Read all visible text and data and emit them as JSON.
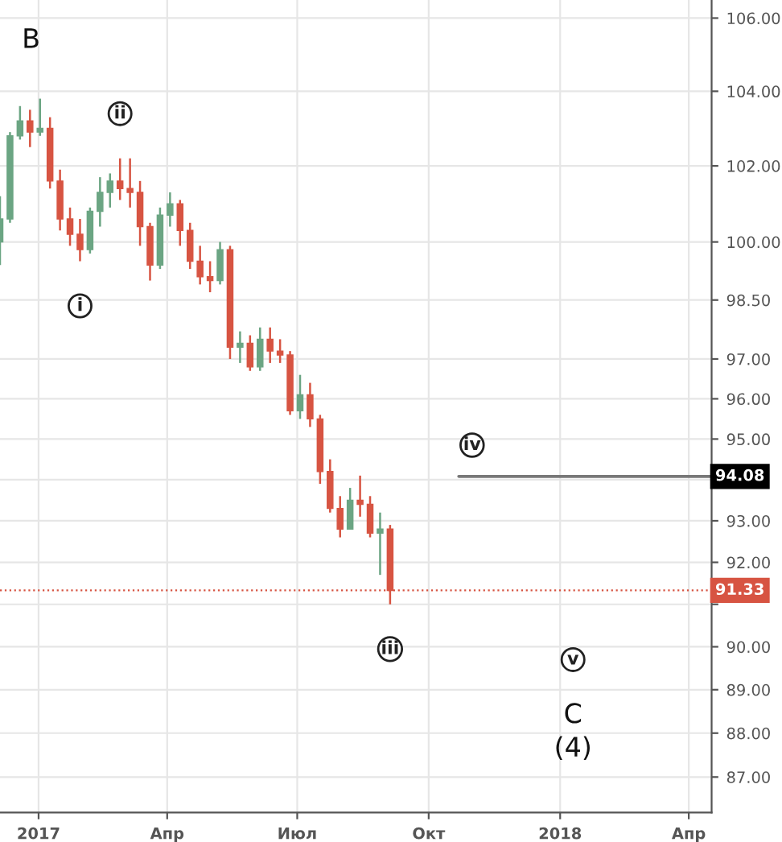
{
  "chart_data": {
    "type": "candlestick",
    "x": [
      "2016-12-05",
      "2016-12-12",
      "2016-12-19",
      "2016-12-26",
      "2017-01-02",
      "2017-01-09",
      "2017-01-16",
      "2017-01-23",
      "2017-01-30",
      "2017-02-06",
      "2017-02-13",
      "2017-02-20",
      "2017-02-27",
      "2017-03-06",
      "2017-03-13",
      "2017-03-20",
      "2017-03-27",
      "2017-04-03",
      "2017-04-10",
      "2017-04-17",
      "2017-04-24",
      "2017-05-01",
      "2017-05-08",
      "2017-05-15",
      "2017-05-22",
      "2017-05-29",
      "2017-06-05",
      "2017-06-12",
      "2017-06-19",
      "2017-06-26",
      "2017-07-03",
      "2017-07-10",
      "2017-07-17",
      "2017-07-24",
      "2017-07-31",
      "2017-08-07",
      "2017-08-14",
      "2017-08-21",
      "2017-08-28",
      "2017-09-04"
    ],
    "ohlc": [
      [
        100.0,
        101.2,
        99.4,
        100.6
      ],
      [
        100.6,
        102.9,
        100.5,
        102.8
      ],
      [
        102.8,
        103.6,
        102.7,
        103.2
      ],
      [
        103.2,
        103.5,
        102.5,
        102.9
      ],
      [
        102.9,
        103.8,
        102.8,
        103.0
      ],
      [
        103.0,
        103.3,
        101.4,
        101.6
      ],
      [
        101.6,
        101.9,
        100.3,
        100.6
      ],
      [
        100.6,
        100.9,
        99.9,
        100.2
      ],
      [
        100.2,
        100.6,
        99.5,
        99.8
      ],
      [
        99.8,
        100.9,
        99.7,
        100.8
      ],
      [
        100.8,
        101.7,
        100.4,
        101.3
      ],
      [
        101.3,
        101.8,
        100.9,
        101.6
      ],
      [
        101.6,
        102.2,
        101.1,
        101.4
      ],
      [
        101.4,
        102.2,
        100.9,
        101.3
      ],
      [
        101.3,
        101.6,
        99.9,
        100.4
      ],
      [
        100.4,
        100.5,
        99.0,
        99.4
      ],
      [
        99.4,
        100.9,
        99.3,
        100.7
      ],
      [
        100.7,
        101.3,
        100.4,
        101.0
      ],
      [
        101.0,
        101.1,
        99.9,
        100.3
      ],
      [
        100.3,
        100.5,
        99.3,
        99.5
      ],
      [
        99.5,
        99.9,
        98.9,
        99.1
      ],
      [
        99.1,
        99.5,
        98.7,
        99.0
      ],
      [
        99.0,
        100.0,
        98.9,
        99.8
      ],
      [
        99.8,
        99.9,
        97.0,
        97.3
      ],
      [
        97.3,
        97.7,
        96.9,
        97.4
      ],
      [
        97.4,
        97.6,
        96.7,
        96.8
      ],
      [
        96.8,
        97.8,
        96.7,
        97.5
      ],
      [
        97.5,
        97.8,
        96.9,
        97.2
      ],
      [
        97.2,
        97.5,
        96.9,
        97.1
      ],
      [
        97.1,
        97.2,
        95.6,
        95.7
      ],
      [
        95.7,
        96.6,
        95.5,
        96.1
      ],
      [
        96.1,
        96.4,
        95.3,
        95.5
      ],
      [
        95.5,
        95.6,
        93.9,
        94.2
      ],
      [
        94.2,
        94.5,
        93.2,
        93.3
      ],
      [
        93.3,
        93.6,
        92.6,
        92.8
      ],
      [
        92.8,
        93.8,
        92.8,
        93.5
      ],
      [
        93.5,
        94.1,
        93.1,
        93.4
      ],
      [
        93.4,
        93.6,
        92.6,
        92.7
      ],
      [
        92.7,
        93.2,
        91.7,
        92.8
      ],
      [
        92.8,
        92.9,
        91.0,
        91.33
      ]
    ],
    "colors": [
      "#6ba583",
      "#6ba583",
      "#6ba583",
      "#d75442",
      "#6ba583",
      "#d75442",
      "#d75442",
      "#d75442",
      "#d75442",
      "#6ba583",
      "#6ba583",
      "#6ba583",
      "#d75442",
      "#d75442",
      "#d75442",
      "#d75442",
      "#6ba583",
      "#6ba583",
      "#d75442",
      "#d75442",
      "#d75442",
      "#d75442",
      "#6ba583",
      "#d75442",
      "#6ba583",
      "#d75442",
      "#6ba583",
      "#d75442",
      "#d75442",
      "#d75442",
      "#6ba583",
      "#d75442",
      "#d75442",
      "#d75442",
      "#d75442",
      "#6ba583",
      "#d75442",
      "#d75442",
      "#6ba583",
      "#d75442"
    ],
    "ref_lines": [
      {
        "axis": "y",
        "value": 91.33,
        "label": "91.33",
        "color": "#d75442",
        "line_style": "dotted"
      }
    ],
    "series": [
      {
        "type": "line",
        "color": "#787878",
        "x": [
          "2017-10-22",
          "2018-04-17"
        ],
        "values": [
          94.08,
          94.08
        ]
      }
    ],
    "annotations": [
      {
        "text": "B",
        "x": "2017-01-02",
        "y": 103.8
      },
      {
        "text": "ii",
        "x": "2017-02-27",
        "y": 102.2
      },
      {
        "text": "i",
        "x": "2017-01-30",
        "y": 99.5
      },
      {
        "text": "iii",
        "x": "2017-09-04",
        "y": 91.0
      },
      {
        "text": "iv",
        "x": "2017-10-22",
        "y": 94.08
      },
      {
        "text": "v",
        "x": "2018-01-10",
        "y": 89.7
      },
      "C",
      "(4)",
      {
        "text": "94.08",
        "x": "2018-04-17",
        "y": 94.08
      }
    ],
    "xlim": [
      "2016-12-05",
      "2018-04-17"
    ],
    "xticks": [
      {
        "value": "2017-01-01",
        "label": "2017"
      },
      {
        "value": "2017-04-01",
        "label": "Апр"
      },
      {
        "value": "2017-07-01",
        "label": "Июл"
      },
      {
        "value": "2017-10-01",
        "label": "Окт"
      },
      {
        "value": "2018-01-01",
        "label": "2018"
      },
      {
        "value": "2018-04-01",
        "label": "Апр"
      }
    ],
    "ylim": [
      86.2,
      106.5
    ],
    "yticks": [
      {
        "value": 106,
        "label": "106.00"
      },
      {
        "value": 104,
        "label": "104.00"
      },
      {
        "value": 102,
        "label": "102.00"
      },
      {
        "value": 100,
        "label": "100.00"
      },
      {
        "value": 98.5,
        "label": "98.50"
      },
      {
        "value": 97,
        "label": "97.00"
      },
      {
        "value": 96,
        "label": "96.00"
      },
      {
        "value": 95,
        "label": "95.00"
      },
      {
        "value": 94,
        "label": null
      },
      {
        "value": 93,
        "label": "93.00"
      },
      {
        "value": 92,
        "label": "92.00"
      },
      {
        "value": 91,
        "label": null
      },
      {
        "value": 90,
        "label": "90.00"
      },
      {
        "value": 89,
        "label": "89.00"
      },
      {
        "value": 88,
        "label": "88.00"
      },
      {
        "value": 87,
        "label": "87.00"
      }
    ],
    "log": true,
    "grid": true
  }
}
